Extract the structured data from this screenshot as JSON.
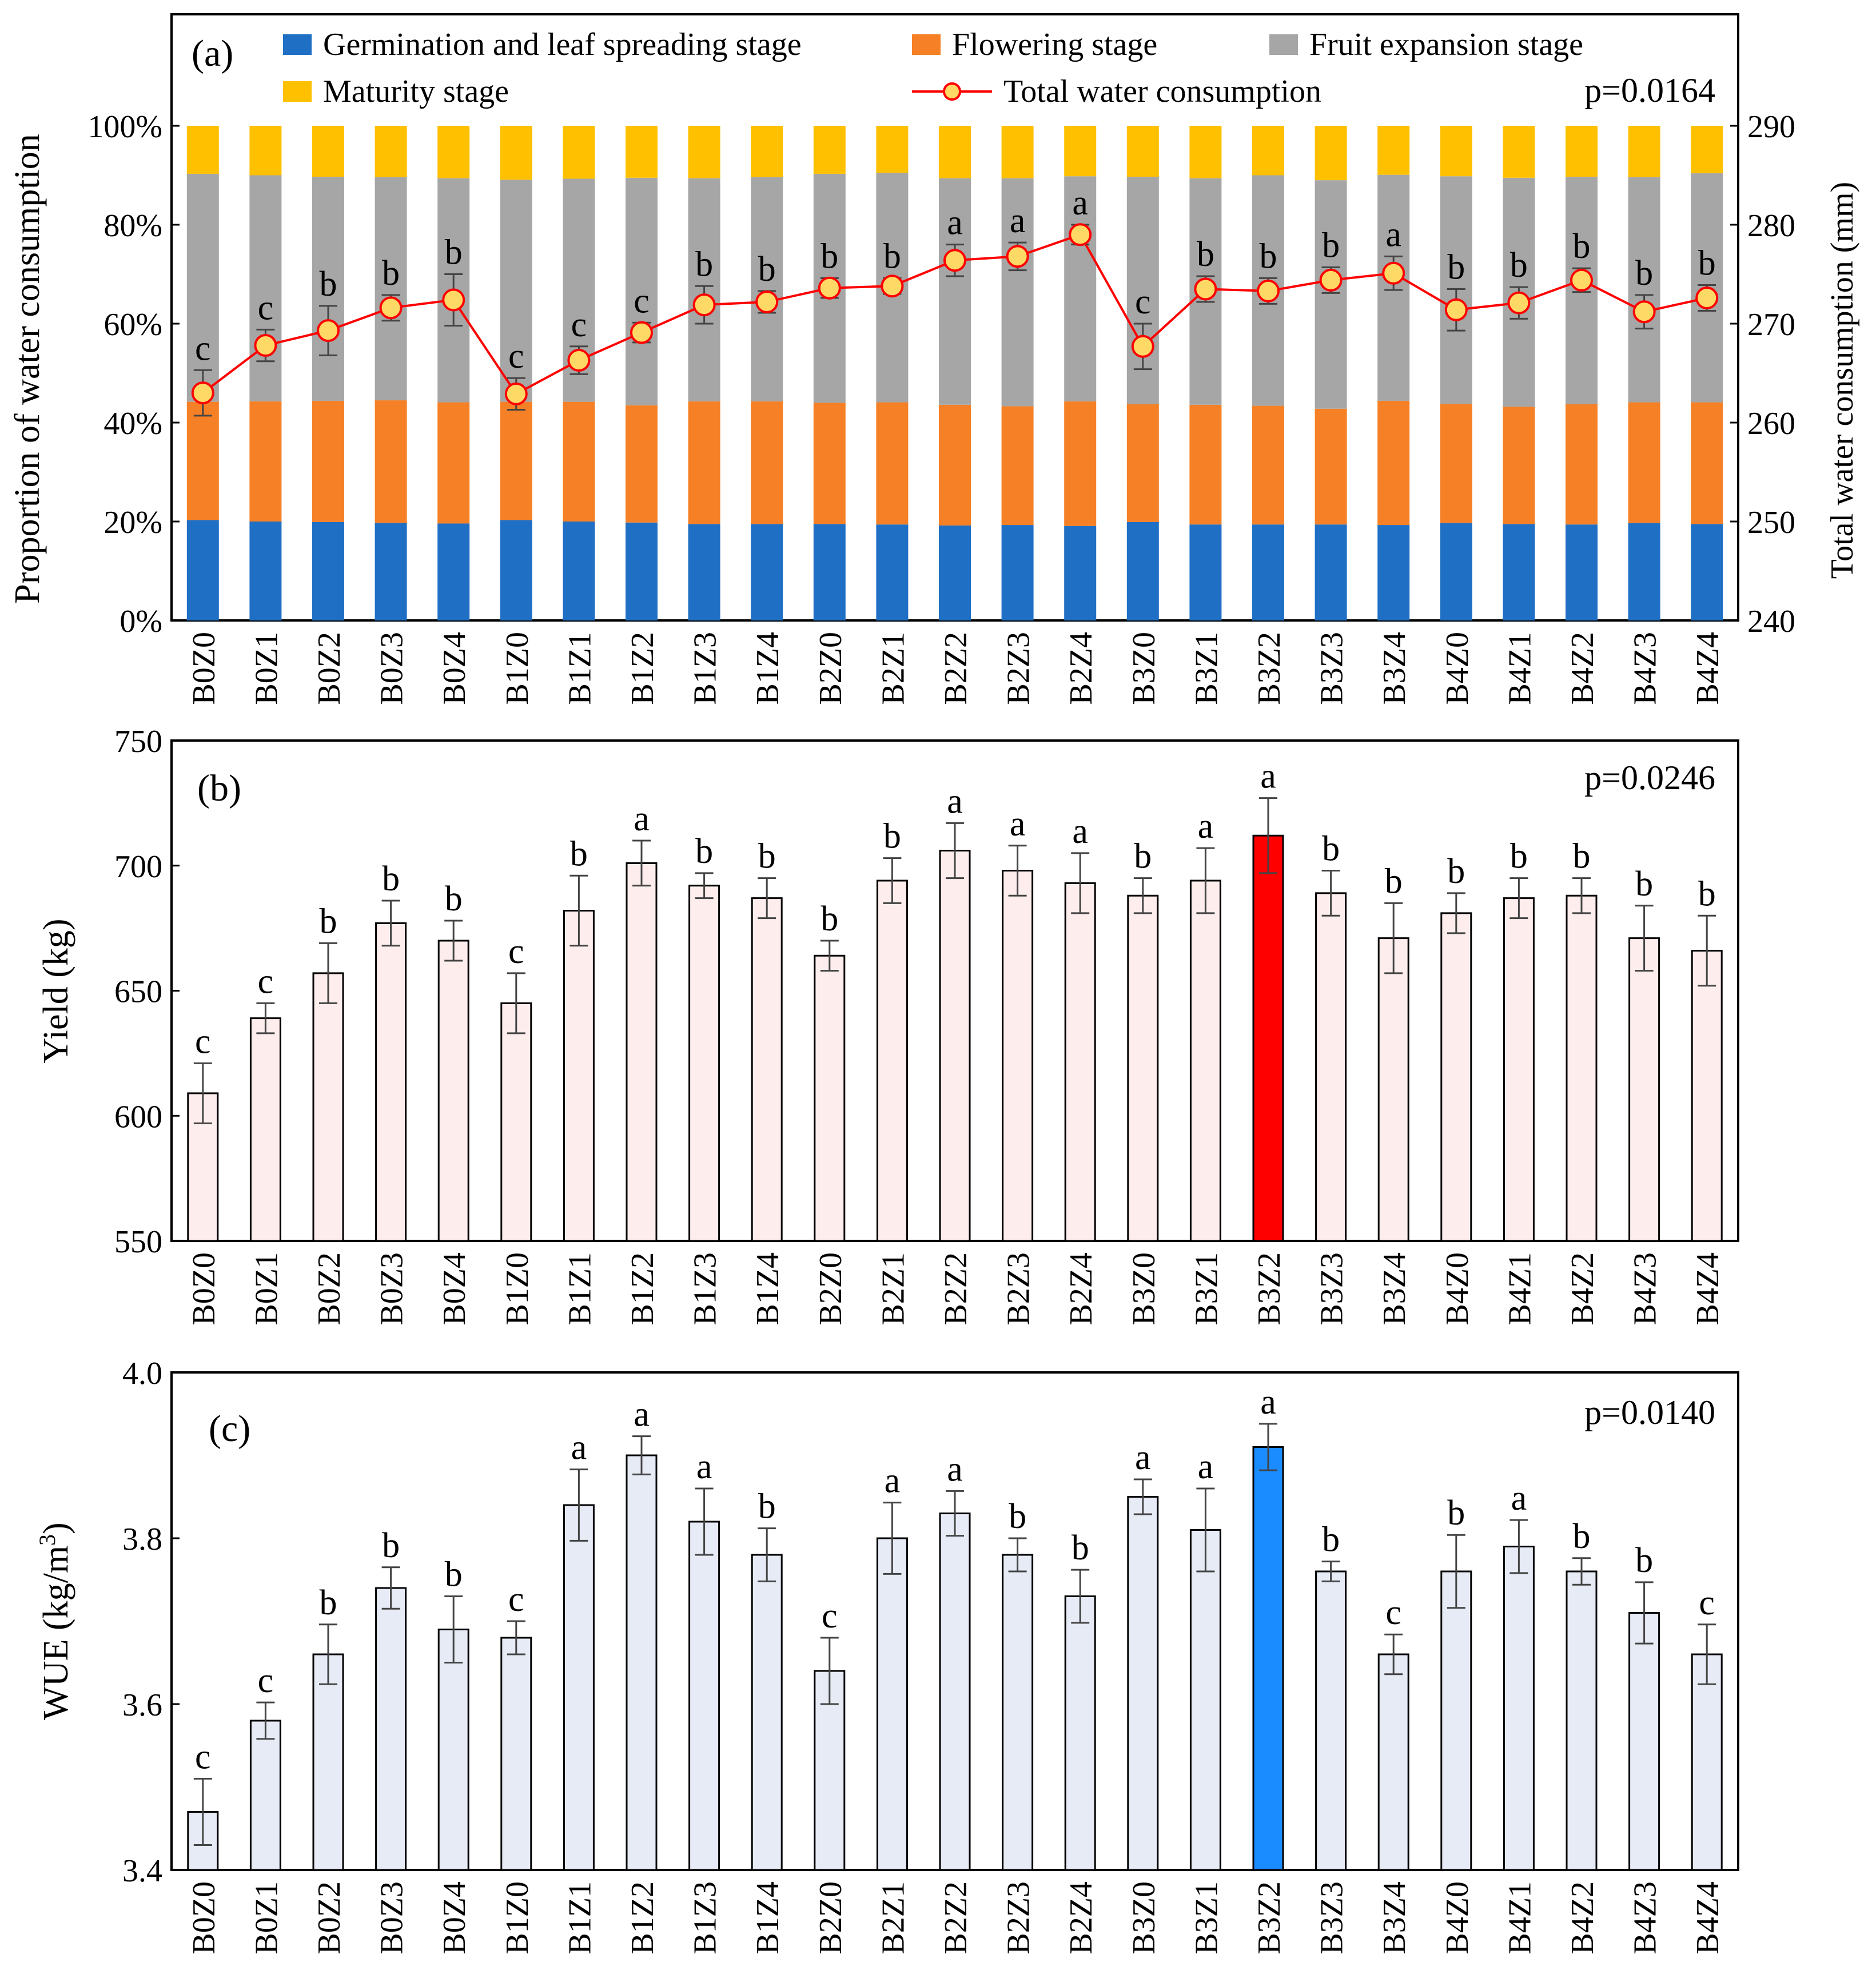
{
  "chart_data": [
    {
      "panel": "(a)",
      "type": "bar",
      "stacked": true,
      "p_value": "p=0.0164",
      "xlabel": "",
      "ylabel": "Proportion of water consumption",
      "y2label": "Total water consumption (mm)",
      "ylim": [
        0,
        100
      ],
      "y_ticks": [
        "0%",
        "20%",
        "40%",
        "60%",
        "80%",
        "100%"
      ],
      "y2lim": [
        240,
        290
      ],
      "y2_ticks": [
        "240",
        "250",
        "260",
        "270",
        "280",
        "290"
      ],
      "categories": [
        "B0Z0",
        "B0Z1",
        "B0Z2",
        "B0Z3",
        "B0Z4",
        "B1Z0",
        "B1Z1",
        "B1Z2",
        "B1Z3",
        "B1Z4",
        "B2Z0",
        "B2Z1",
        "B2Z2",
        "B2Z3",
        "B2Z4",
        "B3Z0",
        "B3Z1",
        "B3Z2",
        "B3Z3",
        "B3Z4",
        "B4Z0",
        "B4Z1",
        "B4Z2",
        "B4Z3",
        "B4Z4"
      ],
      "series": [
        {
          "name": "Germination and leaf spreading stage",
          "color": "#1f6fc5",
          "values": [
            20.3,
            20.0,
            19.9,
            19.7,
            19.6,
            20.3,
            20.0,
            19.8,
            19.5,
            19.5,
            19.5,
            19.4,
            19.2,
            19.3,
            19.1,
            19.9,
            19.4,
            19.4,
            19.4,
            19.3,
            19.7,
            19.5,
            19.4,
            19.7,
            19.5
          ]
        },
        {
          "name": "Flowering stage",
          "color": "#f68025",
          "values": [
            23.9,
            24.3,
            24.5,
            24.8,
            24.5,
            23.9,
            24.2,
            23.7,
            24.8,
            24.8,
            24.5,
            24.7,
            24.4,
            24.0,
            25.2,
            23.8,
            24.2,
            24.0,
            23.4,
            25.1,
            24.1,
            23.7,
            24.3,
            24.4,
            24.6
          ]
        },
        {
          "name": "Fruit expansion stage",
          "color": "#a6a6a6",
          "values": [
            46.1,
            45.7,
            45.3,
            45.1,
            45.3,
            44.9,
            45.1,
            46.0,
            45.1,
            45.3,
            46.3,
            46.4,
            45.8,
            46.1,
            45.5,
            46.0,
            45.8,
            46.6,
            46.2,
            45.7,
            46.0,
            46.3,
            46.0,
            45.5,
            46.3
          ]
        },
        {
          "name": "Maturity stage",
          "color": "#ffc000",
          "values": [
            9.7,
            10.0,
            10.3,
            10.4,
            10.6,
            10.9,
            10.7,
            10.5,
            10.6,
            10.4,
            9.7,
            9.5,
            10.6,
            10.6,
            10.2,
            10.3,
            10.6,
            10.0,
            11.0,
            9.9,
            10.2,
            10.5,
            10.3,
            10.4,
            9.6
          ]
        }
      ],
      "line_series": {
        "name": "Total water consumption",
        "axis": "y2",
        "color": "#ff0000",
        "marker_color": "#ffd966",
        "values": [
          263.0,
          267.8,
          269.3,
          271.6,
          272.4,
          262.9,
          266.3,
          269.1,
          271.9,
          272.2,
          273.6,
          273.8,
          276.4,
          276.8,
          279.0,
          267.7,
          273.5,
          273.3,
          274.4,
          275.1,
          271.4,
          272.1,
          274.4,
          271.2,
          272.6
        ],
        "errors": [
          2.3,
          1.6,
          2.5,
          1.3,
          2.6,
          1.6,
          1.4,
          1.0,
          1.9,
          1.1,
          1.0,
          0.8,
          1.6,
          1.4,
          1.0,
          2.3,
          1.3,
          1.3,
          1.3,
          1.7,
          2.1,
          1.6,
          1.2,
          1.7,
          1.3
        ]
      },
      "letters": [
        "c",
        "c",
        "b",
        "b",
        "b",
        "c",
        "c",
        "c",
        "b",
        "b",
        "b",
        "b",
        "a",
        "a",
        "a",
        "c",
        "b",
        "b",
        "b",
        "a",
        "b",
        "b",
        "b",
        "b",
        "b"
      ]
    },
    {
      "panel": "(b)",
      "type": "bar",
      "p_value": "p=0.0246",
      "xlabel": "",
      "ylabel": "Yield (kg)",
      "ylim": [
        550,
        750
      ],
      "y_ticks": [
        "550",
        "600",
        "650",
        "700",
        "750"
      ],
      "bar_color": "#fdeeed",
      "highlight_color": "#ff0000",
      "highlight_index": 17,
      "categories": [
        "B0Z0",
        "B0Z1",
        "B0Z2",
        "B0Z3",
        "B0Z4",
        "B1Z0",
        "B1Z1",
        "B1Z2",
        "B1Z3",
        "B1Z4",
        "B2Z0",
        "B2Z1",
        "B2Z2",
        "B2Z3",
        "B2Z4",
        "B3Z0",
        "B3Z1",
        "B3Z2",
        "B3Z3",
        "B3Z4",
        "B4Z0",
        "B4Z1",
        "B4Z2",
        "B4Z3",
        "B4Z4"
      ],
      "values": [
        609,
        639,
        657,
        677,
        670,
        645,
        682,
        701,
        692,
        687,
        664,
        694,
        706,
        698,
        693,
        688,
        694,
        712,
        689,
        671,
        681,
        687,
        688,
        671,
        666
      ],
      "errors": [
        12,
        6,
        12,
        9,
        8,
        12,
        14,
        9,
        5,
        8,
        6,
        9,
        11,
        10,
        12,
        7,
        13,
        15,
        9,
        14,
        8,
        8,
        7,
        13,
        14
      ],
      "letters": [
        "c",
        "c",
        "b",
        "b",
        "b",
        "c",
        "b",
        "a",
        "b",
        "b",
        "b",
        "b",
        "a",
        "a",
        "a",
        "b",
        "a",
        "a",
        "b",
        "b",
        "b",
        "b",
        "b",
        "b",
        "b"
      ]
    },
    {
      "panel": "(c)",
      "type": "bar",
      "p_value": "p=0.0140",
      "xlabel": "",
      "ylabel_main": "WUE (kg/m",
      "ylabel_sup": "3",
      "ylabel_end": ")",
      "ylim": [
        3.4,
        4.0
      ],
      "y_ticks": [
        "3.4",
        "3.6",
        "3.8",
        "4.0"
      ],
      "bar_color": "#e6ebf6",
      "highlight_color": "#1a8cff",
      "highlight_index": 17,
      "categories": [
        "B0Z0",
        "B0Z1",
        "B0Z2",
        "B0Z3",
        "B0Z4",
        "B1Z0",
        "B1Z1",
        "B1Z2",
        "B1Z3",
        "B1Z4",
        "B2Z0",
        "B2Z1",
        "B2Z2",
        "B2Z3",
        "B2Z4",
        "B3Z0",
        "B3Z1",
        "B3Z2",
        "B3Z3",
        "B3Z4",
        "B4Z0",
        "B4Z1",
        "B4Z2",
        "B4Z3",
        "B4Z4"
      ],
      "values": [
        3.47,
        3.58,
        3.66,
        3.74,
        3.69,
        3.68,
        3.84,
        3.9,
        3.82,
        3.78,
        3.64,
        3.8,
        3.83,
        3.78,
        3.73,
        3.85,
        3.81,
        3.91,
        3.76,
        3.66,
        3.76,
        3.79,
        3.76,
        3.71,
        3.66
      ],
      "errors": [
        0.04,
        0.022,
        0.036,
        0.025,
        0.04,
        0.02,
        0.043,
        0.023,
        0.04,
        0.032,
        0.04,
        0.043,
        0.027,
        0.02,
        0.032,
        0.021,
        0.05,
        0.028,
        0.012,
        0.024,
        0.044,
        0.032,
        0.016,
        0.037,
        0.036
      ],
      "letters": [
        "c",
        "c",
        "b",
        "b",
        "b",
        "c",
        "a",
        "a",
        "a",
        "b",
        "c",
        "a",
        "a",
        "b",
        "b",
        "a",
        "a",
        "a",
        "b",
        "c",
        "b",
        "a",
        "b",
        "b",
        "c"
      ]
    }
  ]
}
